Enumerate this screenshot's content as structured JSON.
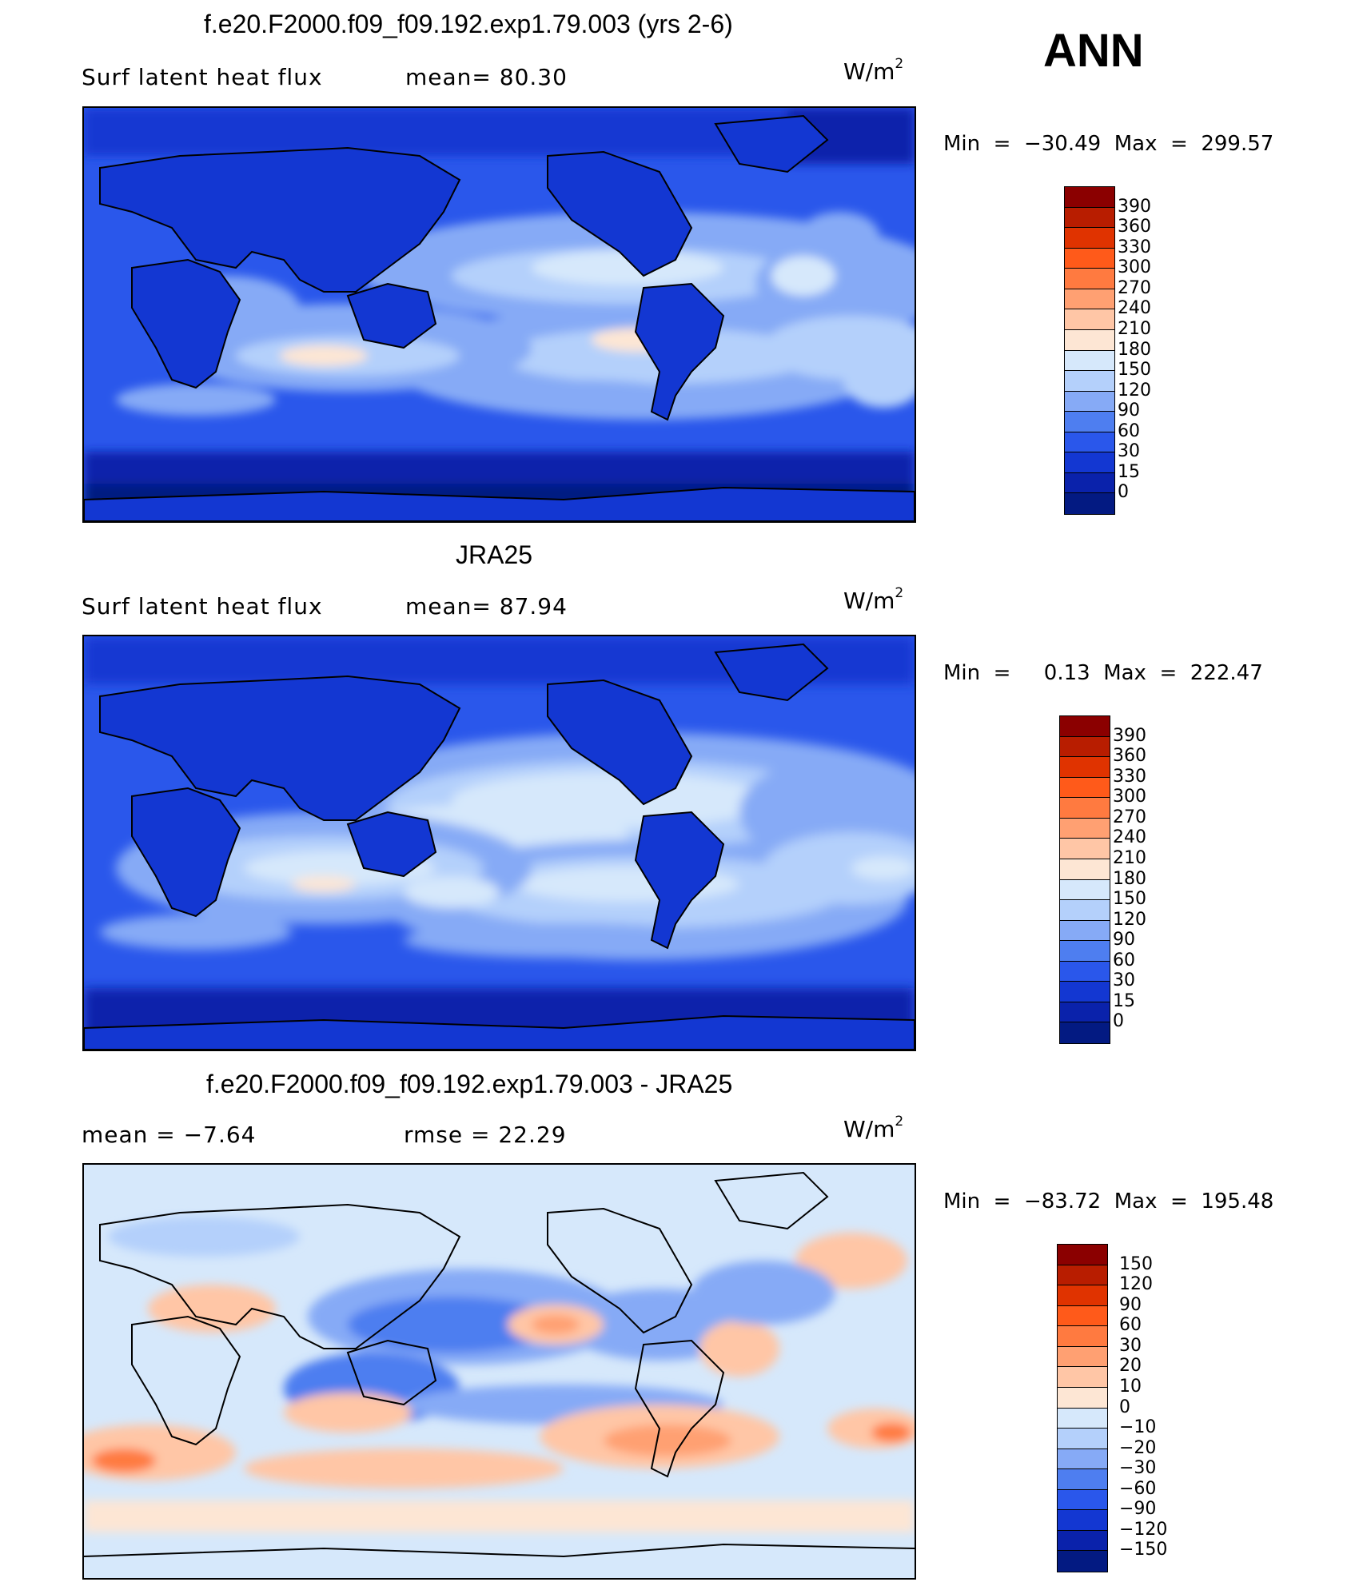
{
  "header": {
    "season": "ANN"
  },
  "panels": [
    {
      "id": "model",
      "title": "f.e20.F2000.f09_f09.192.exp1.79.003 (yrs 2-6)",
      "left_label": "Surf  latent  heat  flux",
      "stat_text": "mean=   80.30",
      "units": "W/m",
      "units_sup": "2",
      "minmax": "Min  =  −30.49  Max  =  299.57",
      "colorbar_labels": [
        "390",
        "360",
        "330",
        "300",
        "270",
        "240",
        "210",
        "180",
        "150",
        "120",
        "90",
        "60",
        "30",
        "15",
        "0"
      ],
      "colorbar_colors": [
        "#8b0000",
        "#b81d00",
        "#e03300",
        "#ff5a1a",
        "#ff7a40",
        "#ffa072",
        "#ffc6a6",
        "#fde6d4",
        "#d6e8fb",
        "#b4d0fb",
        "#86aaf6",
        "#4e7ef0",
        "#2a57eb",
        "#1337d2",
        "#0a22ab",
        "#031a82"
      ]
    },
    {
      "id": "obs",
      "title": "JRA25",
      "left_label": "Surf  latent  heat  flux",
      "stat_text": "mean=   87.94",
      "units": "W/m",
      "units_sup": "2",
      "minmax": "Min  =     0.13  Max  =  222.47",
      "colorbar_labels": [
        "390",
        "360",
        "330",
        "300",
        "270",
        "240",
        "210",
        "180",
        "150",
        "120",
        "90",
        "60",
        "30",
        "15",
        "0"
      ],
      "colorbar_colors": [
        "#8b0000",
        "#b81d00",
        "#e03300",
        "#ff5a1a",
        "#ff7a40",
        "#ffa072",
        "#ffc6a6",
        "#fde6d4",
        "#d6e8fb",
        "#b4d0fb",
        "#86aaf6",
        "#4e7ef0",
        "#2a57eb",
        "#1337d2",
        "#0a22ab",
        "#031a82"
      ]
    },
    {
      "id": "diff",
      "title": "f.e20.F2000.f09_f09.192.exp1.79.003 - JRA25",
      "left_label": "mean  =    −7.64",
      "stat_text": "rmse  =    22.29",
      "units": "W/m",
      "units_sup": "2",
      "minmax": "Min  =  −83.72  Max  =  195.48",
      "colorbar_labels": [
        "150",
        "120",
        "90",
        "60",
        "30",
        "20",
        "10",
        "0",
        "−10",
        "−20",
        "−30",
        "−60",
        "−90",
        "−120",
        "−150"
      ],
      "colorbar_colors": [
        "#8b0000",
        "#b81d00",
        "#e03300",
        "#ff5a1a",
        "#ff7a40",
        "#ffa072",
        "#ffc6a6",
        "#fde6d4",
        "#d6e8fb",
        "#b4d0fb",
        "#86aaf6",
        "#4e7ef0",
        "#2a57eb",
        "#1337d2",
        "#0a22ab",
        "#031a82"
      ]
    }
  ]
}
